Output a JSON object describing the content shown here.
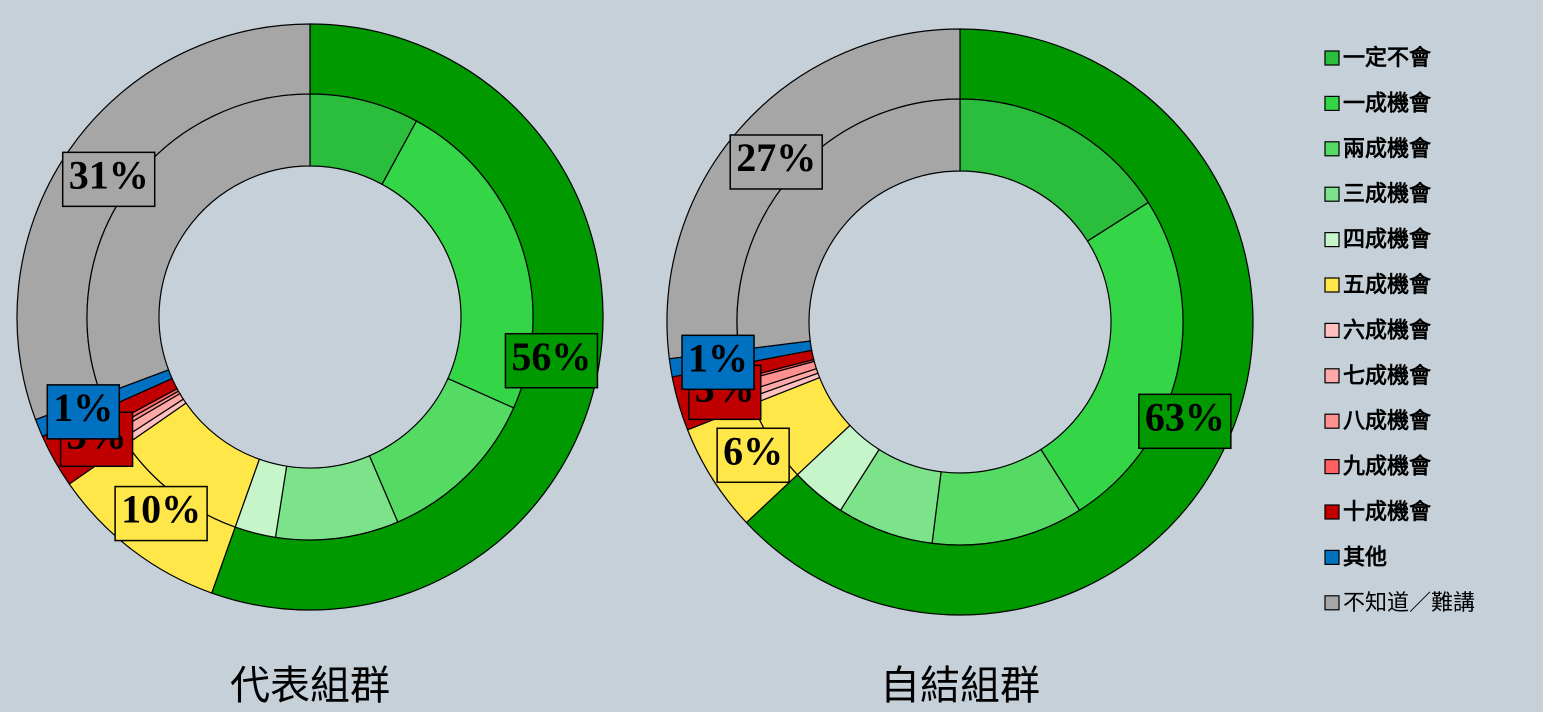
{
  "chart_data": [
    {
      "type": "donut",
      "title": "代表組群",
      "inner": {
        "values": [
          8,
          24,
          12,
          9,
          3,
          10,
          0.5,
          0.7,
          0.3,
          0.3,
          1.2,
          1,
          31
        ]
      },
      "outer": {
        "values": [
          56,
          10,
          3,
          1,
          31
        ],
        "value_labels": [
          "56%",
          "10%",
          "3%",
          "1%",
          "31%"
        ],
        "colors": [
          "#009900",
          "#ffe74a",
          "#c00000",
          "#0070c0",
          "#a6a6a6"
        ]
      }
    },
    {
      "type": "donut",
      "title": "自結組群",
      "inner": {
        "values": [
          16,
          25,
          11,
          7,
          4,
          6,
          0.5,
          0.5,
          0.8,
          0.2,
          1,
          1,
          27
        ]
      },
      "outer": {
        "values": [
          63,
          6,
          3,
          1,
          27
        ],
        "value_labels": [
          "63%",
          "6%",
          "3%",
          "1%",
          "27%"
        ],
        "colors": [
          "#009900",
          "#ffe74a",
          "#c00000",
          "#0070c0",
          "#a6a6a6"
        ]
      }
    }
  ],
  "legend": {
    "labels": [
      "一定不會",
      "一成機會",
      "兩成機會",
      "三成機會",
      "四成機會",
      "五成機會",
      "六成機會",
      "七成機會",
      "八成機會",
      "九成機會",
      "十成機會",
      "其他",
      "不知道／難講"
    ],
    "colors": [
      "#2bbd3c",
      "#35d548",
      "#55db63",
      "#7de38a",
      "#c5f5c8",
      "#ffe74a",
      "#ffc0c0",
      "#ffa8a8",
      "#ff9090",
      "#ff6060",
      "#c00000",
      "#0070c0",
      "#a6a6a6"
    ]
  }
}
